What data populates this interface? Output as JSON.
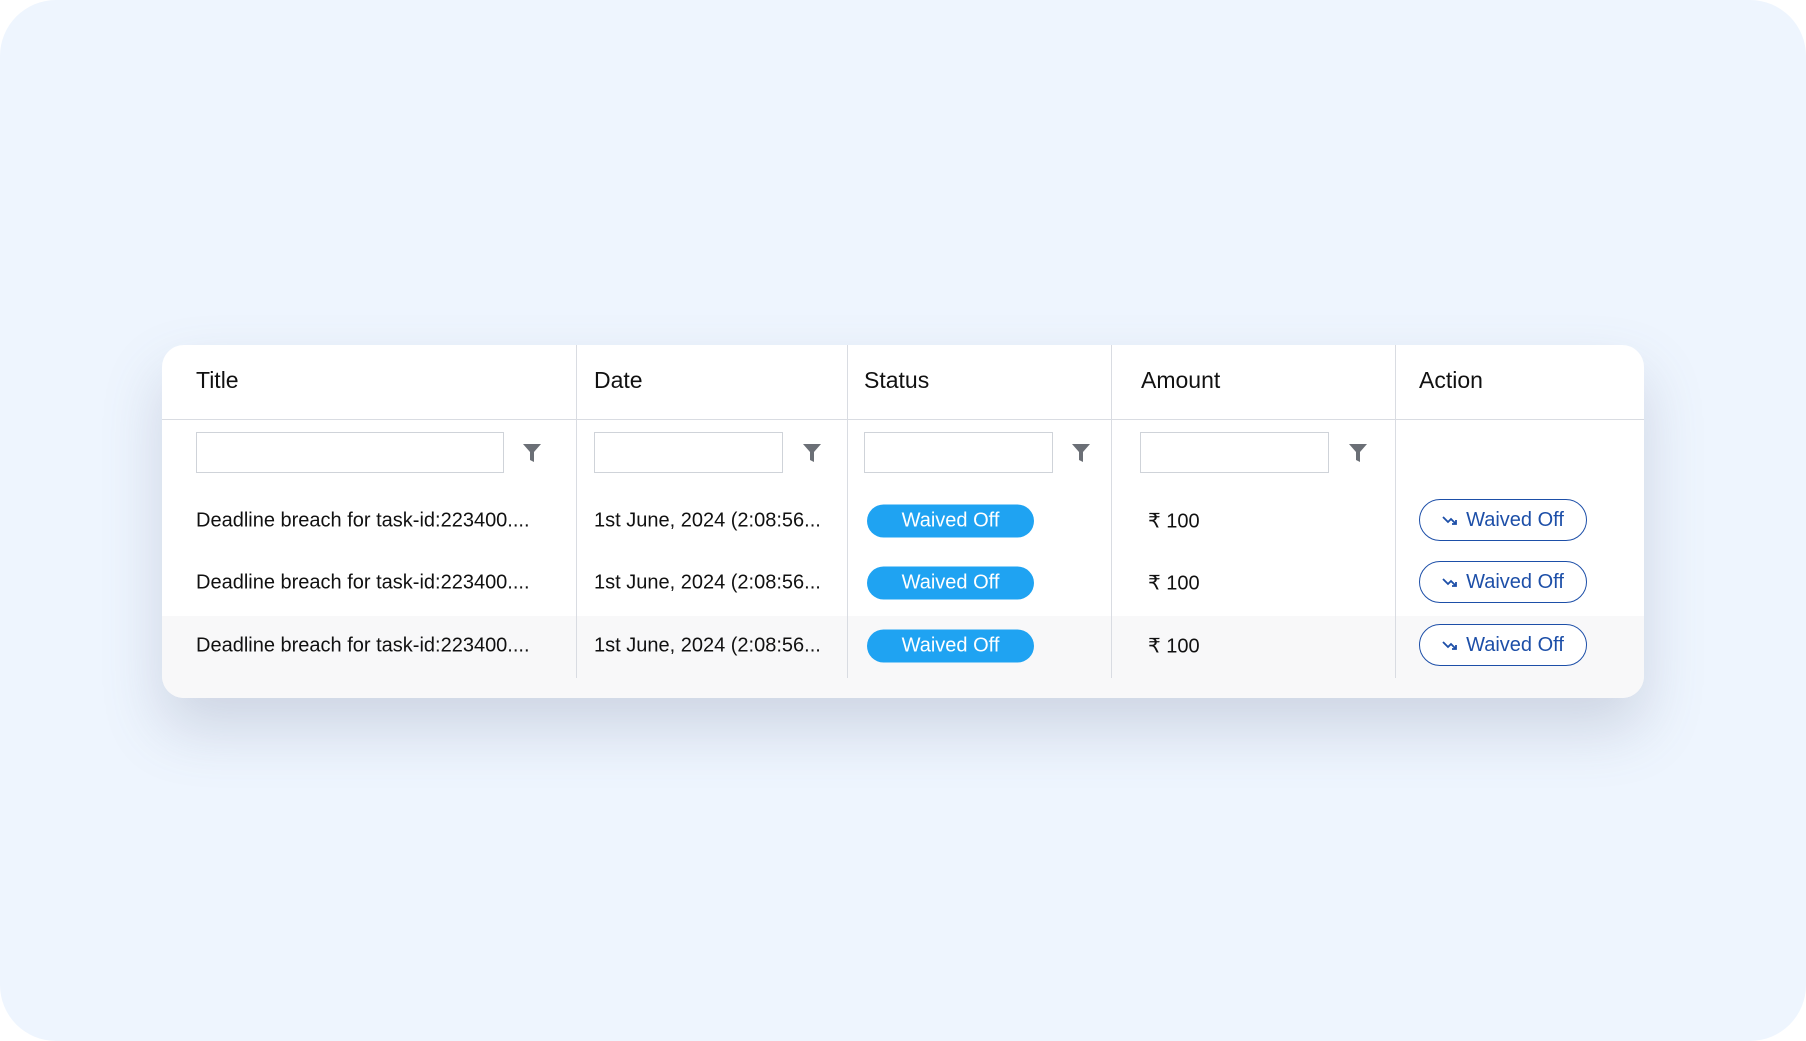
{
  "columns": [
    "Title",
    "Date",
    "Status",
    "Amount",
    "Action"
  ],
  "filter_icon": "funnel-icon",
  "rows": [
    {
      "title": "Deadline breach for task-id:223400....",
      "date": "1st June, 2024 (2:08:56...",
      "status": "Waived Off",
      "amount": "₹ 100",
      "action": "Waived Off"
    },
    {
      "title": "Deadline breach for task-id:223400....",
      "date": "1st June, 2024 (2:08:56...",
      "status": "Waived Off",
      "amount": "₹ 100",
      "action": "Waived Off"
    },
    {
      "title": "Deadline breach for task-id:223400....",
      "date": "1st June, 2024 (2:08:56...",
      "status": "Waived Off",
      "amount": "₹ 100",
      "action": "Waived Off"
    }
  ],
  "colors": {
    "status_pill": "#1fa3f2",
    "action_button": "#1d4fa8",
    "background": "#eef5fe"
  }
}
